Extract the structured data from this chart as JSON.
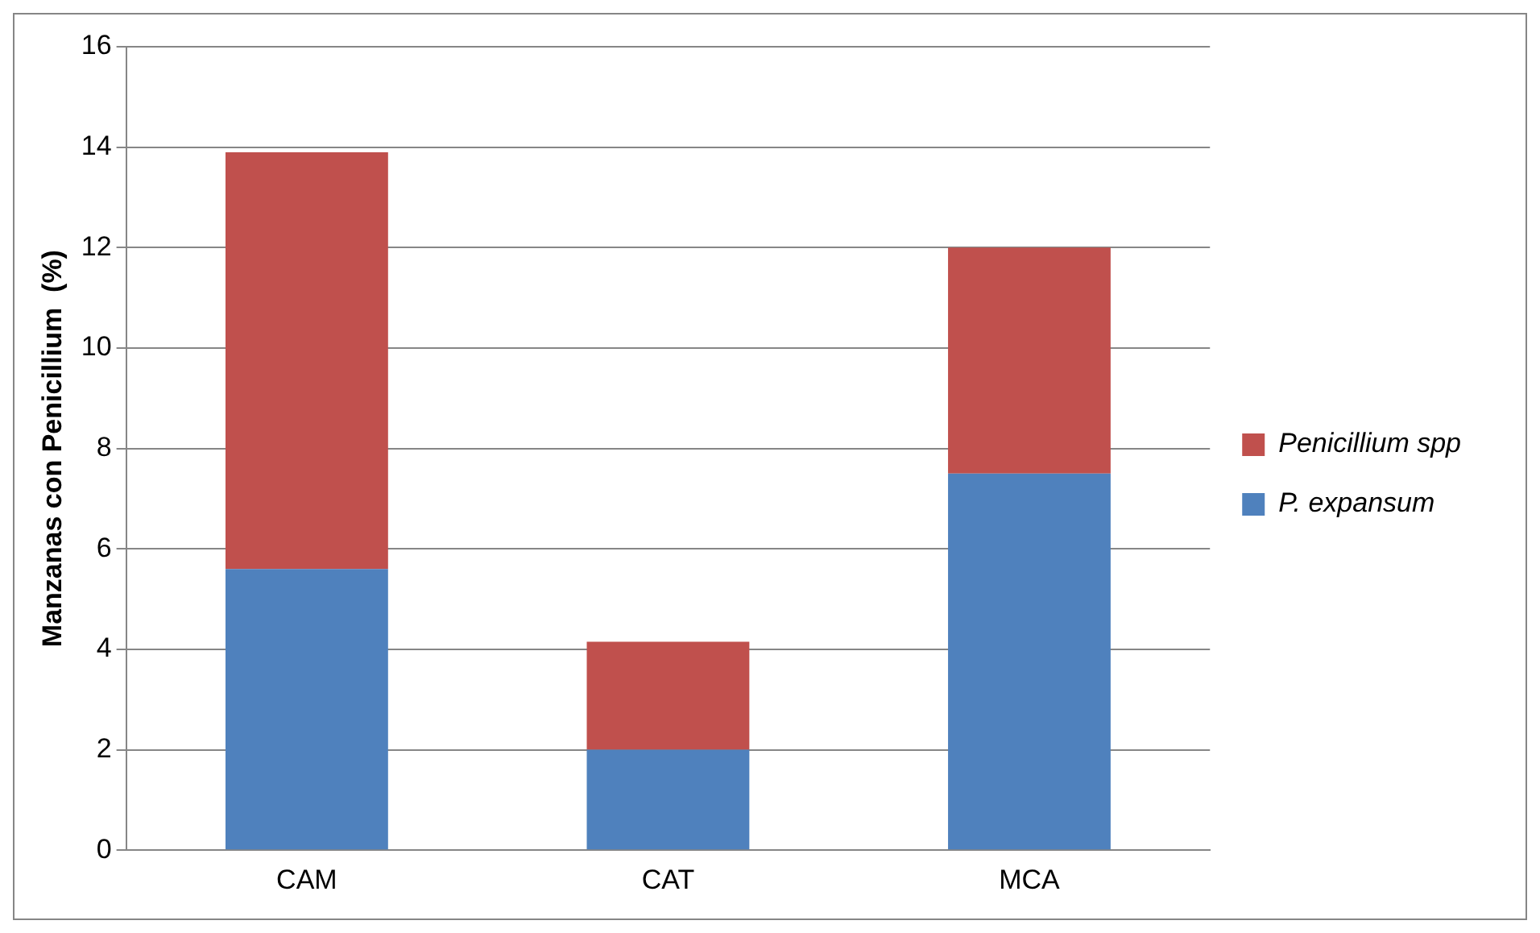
{
  "chart_data": {
    "type": "bar",
    "ylabel": "Manzanas con Penicillium  (%)",
    "categories": [
      "CAM",
      "CAT",
      "MCA"
    ],
    "series": [
      {
        "name": "P. expansum",
        "color": "#4f81bd",
        "values": [
          5.6,
          2.0,
          7.5
        ]
      },
      {
        "name": "Penicillium spp",
        "color": "#c0504d",
        "values": [
          8.3,
          2.15,
          4.5
        ]
      }
    ],
    "stacked": true,
    "ylim": [
      0,
      16
    ],
    "yticks": [
      0,
      2,
      4,
      6,
      8,
      10,
      12,
      14,
      16
    ],
    "grid": "y",
    "legend": "right"
  }
}
